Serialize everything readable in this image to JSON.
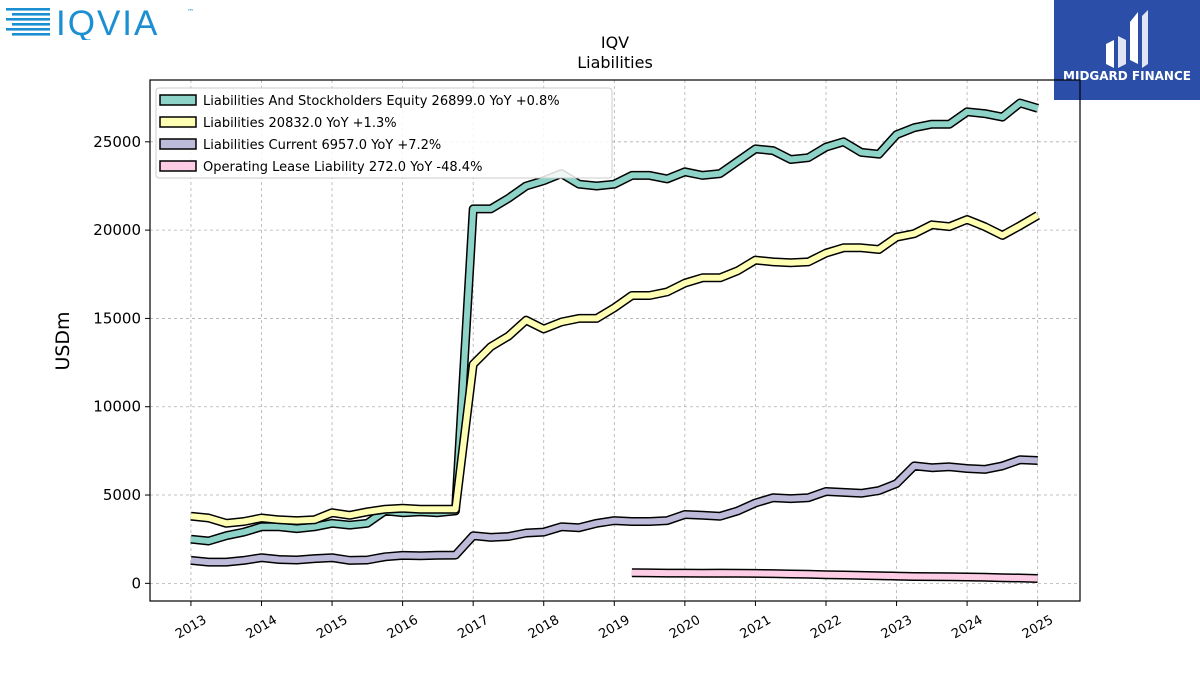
{
  "branding": {
    "iqvia_logo_text": "IQVIA",
    "iqvia_tm": "™",
    "midgard_text": "MIDGARD FINANCE",
    "midgard_bg": "#2b4fa8"
  },
  "chart_data": {
    "type": "line",
    "title": "IQV",
    "subtitle": "Liabilities",
    "xlabel": "",
    "ylabel": "USDm",
    "ylim": [
      -1000,
      28500
    ],
    "xlim": [
      2012.42,
      2025.6
    ],
    "yticks": [
      0,
      5000,
      10000,
      15000,
      20000,
      25000
    ],
    "xticks": [
      2013,
      2014,
      2015,
      2016,
      2017,
      2018,
      2019,
      2020,
      2021,
      2022,
      2023,
      2024,
      2025
    ],
    "grid": true,
    "legend_position": "top-left",
    "series": [
      {
        "name": "Liabilities And Stockholders Equity",
        "legend": "Liabilities And Stockholders Equity  26899.0 YoY +0.8%",
        "color": "#8dd3c7",
        "x": [
          2013.0,
          2013.25,
          2013.5,
          2013.75,
          2014.0,
          2014.25,
          2014.5,
          2014.75,
          2015.0,
          2015.25,
          2015.5,
          2015.75,
          2016.0,
          2016.25,
          2016.5,
          2016.75,
          2017.0,
          2017.25,
          2017.5,
          2017.75,
          2018.0,
          2018.25,
          2018.5,
          2018.75,
          2019.0,
          2019.25,
          2019.5,
          2019.75,
          2020.0,
          2020.25,
          2020.5,
          2020.75,
          2021.0,
          2021.25,
          2021.5,
          2021.75,
          2022.0,
          2022.25,
          2022.5,
          2022.75,
          2023.0,
          2023.25,
          2023.5,
          2023.75,
          2024.0,
          2024.25,
          2024.5,
          2024.75,
          2025.0
        ],
        "values": [
          2500,
          2400,
          2700,
          2900,
          3200,
          3200,
          3100,
          3200,
          3400,
          3300,
          3400,
          4100,
          4000,
          4050,
          4000,
          4100,
          21200,
          21200,
          21800,
          22500,
          22800,
          23200,
          22600,
          22500,
          22600,
          23100,
          23100,
          22900,
          23300,
          23100,
          23200,
          23900,
          24600,
          24500,
          24000,
          24100,
          24700,
          25000,
          24400,
          24300,
          25400,
          25800,
          26000,
          26000,
          26700,
          26600,
          26400,
          27200,
          26899
        ]
      },
      {
        "name": "Liabilities",
        "legend": "Liabilities  20832.0 YoY +1.3%",
        "color": "#ffffb3",
        "x": [
          2013.0,
          2013.25,
          2013.5,
          2013.75,
          2014.0,
          2014.25,
          2014.5,
          2014.75,
          2015.0,
          2015.25,
          2015.5,
          2015.75,
          2016.0,
          2016.25,
          2016.5,
          2016.75,
          2017.0,
          2017.25,
          2017.5,
          2017.75,
          2018.0,
          2018.25,
          2018.5,
          2018.75,
          2019.0,
          2019.25,
          2019.5,
          2019.75,
          2020.0,
          2020.25,
          2020.5,
          2020.75,
          2021.0,
          2021.25,
          2021.5,
          2021.75,
          2022.0,
          2022.25,
          2022.5,
          2022.75,
          2023.0,
          2023.25,
          2023.5,
          2023.75,
          2024.0,
          2024.25,
          2024.5,
          2024.75,
          2025.0
        ],
        "values": [
          3800,
          3700,
          3400,
          3500,
          3700,
          3600,
          3550,
          3600,
          4000,
          3850,
          4050,
          4200,
          4250,
          4200,
          4200,
          4200,
          12400,
          13400,
          14000,
          14900,
          14400,
          14800,
          15000,
          15000,
          15600,
          16300,
          16300,
          16500,
          17000,
          17300,
          17300,
          17700,
          18300,
          18200,
          18150,
          18200,
          18700,
          19000,
          19000,
          18900,
          19600,
          19800,
          20300,
          20200,
          20600,
          20200,
          19700,
          20250,
          20832
        ]
      },
      {
        "name": "Liabilities Current",
        "legend": "Liabilities Current  6957.0 YoY +7.2%",
        "color": "#bebada",
        "x": [
          2013.0,
          2013.25,
          2013.5,
          2013.75,
          2014.0,
          2014.25,
          2014.5,
          2014.75,
          2015.0,
          2015.25,
          2015.5,
          2015.75,
          2016.0,
          2016.25,
          2016.5,
          2016.75,
          2017.0,
          2017.25,
          2017.5,
          2017.75,
          2018.0,
          2018.25,
          2018.5,
          2018.75,
          2019.0,
          2019.25,
          2019.5,
          2019.75,
          2020.0,
          2020.25,
          2020.5,
          2020.75,
          2021.0,
          2021.25,
          2021.5,
          2021.75,
          2022.0,
          2022.25,
          2022.5,
          2022.75,
          2023.0,
          2023.25,
          2023.5,
          2023.75,
          2024.0,
          2024.25,
          2024.5,
          2024.75,
          2025.0
        ],
        "values": [
          1300,
          1200,
          1200,
          1300,
          1450,
          1350,
          1320,
          1400,
          1450,
          1300,
          1320,
          1500,
          1580,
          1560,
          1590,
          1600,
          2700,
          2600,
          2650,
          2850,
          2900,
          3200,
          3150,
          3400,
          3550,
          3500,
          3500,
          3550,
          3900,
          3850,
          3800,
          4100,
          4550,
          4850,
          4800,
          4850,
          5200,
          5150,
          5100,
          5250,
          5650,
          6650,
          6550,
          6600,
          6500,
          6450,
          6650,
          7000,
          6957
        ]
      },
      {
        "name": "Operating Lease Liability",
        "legend": "Operating Lease Liability  272.0 YoY -48.4%",
        "color": "#fccde5",
        "x": [
          2019.25,
          2019.5,
          2019.75,
          2020.0,
          2020.25,
          2020.5,
          2020.75,
          2021.0,
          2021.25,
          2021.5,
          2021.75,
          2022.0,
          2022.25,
          2022.5,
          2022.75,
          2023.0,
          2023.25,
          2023.5,
          2023.75,
          2024.0,
          2024.25,
          2024.5,
          2024.75,
          2025.0
        ],
        "values": [
          600,
          590,
          580,
          580,
          570,
          580,
          570,
          560,
          550,
          530,
          510,
          490,
          470,
          450,
          430,
          410,
          390,
          380,
          370,
          360,
          340,
          320,
          300,
          272
        ]
      }
    ]
  }
}
